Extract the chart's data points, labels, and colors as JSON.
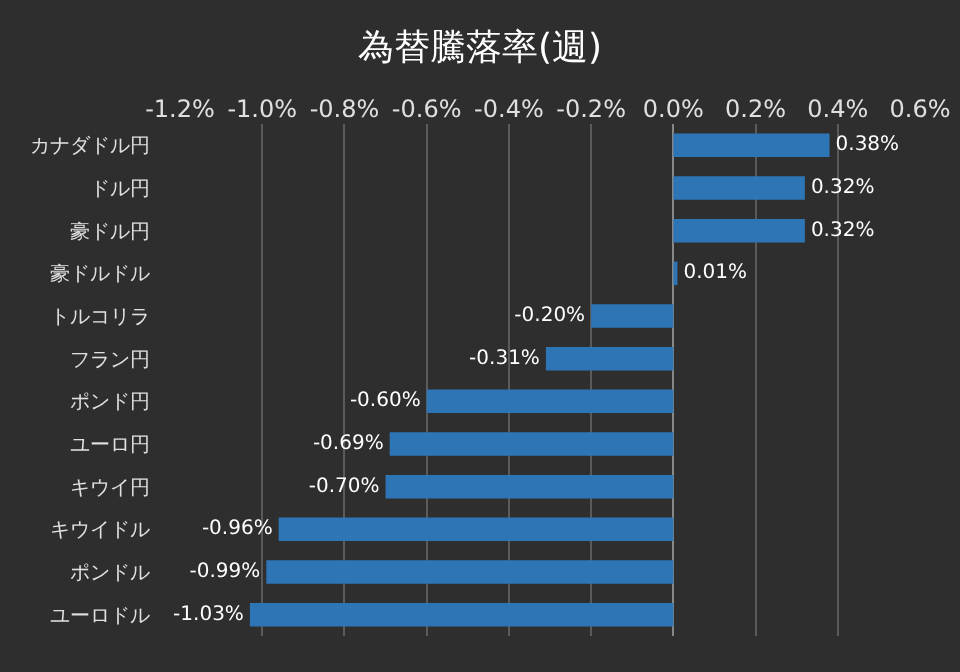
{
  "chart_data": {
    "type": "bar",
    "title": "為替騰落率(週)",
    "orientation": "horizontal",
    "categories": [
      "カナダドル円",
      "ドル円",
      "豪ドル円",
      "豪ドルドル",
      "トルコリラ",
      "フラン円",
      "ポンド円",
      "ユーロ円",
      "キウイ円",
      "キウイドル",
      "ポンドル",
      "ユーロドル"
    ],
    "values": [
      0.38,
      0.32,
      0.32,
      0.01,
      -0.2,
      -0.31,
      -0.6,
      -0.69,
      -0.7,
      -0.96,
      -0.99,
      -1.03
    ],
    "value_labels": [
      "0.38%",
      "0.32%",
      "0.32%",
      "0.01%",
      "-0.20%",
      "-0.31%",
      "-0.60%",
      "-0.69%",
      "-0.70%",
      "-0.96%",
      "-0.99%",
      "-1.03%"
    ],
    "color": "#2e75b6",
    "xlim": [
      -1.2,
      0.6
    ],
    "xticks": [
      {
        "value": -1.2,
        "label": "-1.2%"
      },
      {
        "value": -1.0,
        "label": "-1.0%"
      },
      {
        "value": -0.8,
        "label": "-0.8%"
      },
      {
        "value": -0.6,
        "label": "-0.6%"
      },
      {
        "value": -0.4,
        "label": "-0.4%"
      },
      {
        "value": -0.2,
        "label": "-0.2%"
      },
      {
        "value": 0.0,
        "label": "0.0%"
      },
      {
        "value": 0.2,
        "label": "0.2%"
      },
      {
        "value": 0.4,
        "label": "0.4%"
      },
      {
        "value": 0.6,
        "label": "0.6%"
      }
    ],
    "grid": "x"
  }
}
